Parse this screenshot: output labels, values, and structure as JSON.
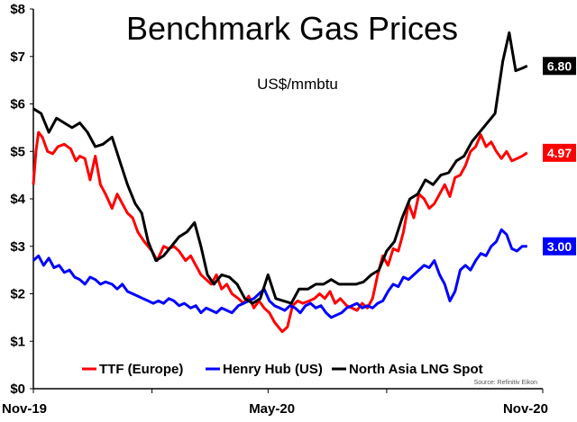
{
  "chart_data": {
    "type": "line",
    "title": "Benchmark Gas Prices",
    "subtitle": "US$/mmbtu",
    "source": "Source: Refinitiv Eikon",
    "ylim": [
      0,
      8
    ],
    "y_ticks": [
      "$0",
      "$1",
      "$2",
      "$3",
      "$4",
      "$5",
      "$6",
      "$7",
      "$8"
    ],
    "x_ticks": [
      "Nov-19",
      "May-20",
      "Nov-20"
    ],
    "x_range": [
      "2019-11-01",
      "2020-11-30"
    ],
    "grid": false,
    "legend_position": "bottom",
    "series": [
      {
        "name": "TTF (Europe)",
        "color": "#ff0000",
        "end_label": "4.97",
        "points": [
          [
            "2019-11-01",
            4.3
          ],
          [
            "2019-11-03",
            5.0
          ],
          [
            "2019-11-05",
            5.4
          ],
          [
            "2019-11-08",
            5.3
          ],
          [
            "2019-11-12",
            5.0
          ],
          [
            "2019-11-16",
            4.95
          ],
          [
            "2019-11-20",
            5.1
          ],
          [
            "2019-11-25",
            5.15
          ],
          [
            "2019-11-30",
            5.05
          ],
          [
            "2019-12-04",
            4.8
          ],
          [
            "2019-12-07",
            4.9
          ],
          [
            "2019-12-11",
            4.85
          ],
          [
            "2019-12-15",
            4.4
          ],
          [
            "2019-12-19",
            4.9
          ],
          [
            "2019-12-23",
            4.3
          ],
          [
            "2019-12-27",
            4.1
          ],
          [
            "2020-01-01",
            3.8
          ],
          [
            "2020-01-05",
            4.1
          ],
          [
            "2020-01-09",
            3.9
          ],
          [
            "2020-01-13",
            3.7
          ],
          [
            "2020-01-17",
            3.6
          ],
          [
            "2020-01-21",
            3.3
          ],
          [
            "2020-01-26",
            3.1
          ],
          [
            "2020-02-01",
            2.9
          ],
          [
            "2020-02-05",
            2.7
          ],
          [
            "2020-02-10",
            3.0
          ],
          [
            "2020-02-14",
            2.95
          ],
          [
            "2020-02-18",
            3.0
          ],
          [
            "2020-02-22",
            2.9
          ],
          [
            "2020-02-27",
            2.7
          ],
          [
            "2020-03-02",
            2.8
          ],
          [
            "2020-03-06",
            2.6
          ],
          [
            "2020-03-10",
            2.4
          ],
          [
            "2020-03-14",
            2.3
          ],
          [
            "2020-03-18",
            2.2
          ],
          [
            "2020-03-22",
            2.4
          ],
          [
            "2020-03-26",
            2.1
          ],
          [
            "2020-03-30",
            2.2
          ],
          [
            "2020-04-03",
            2.0
          ],
          [
            "2020-04-08",
            1.9
          ],
          [
            "2020-04-12",
            1.8
          ],
          [
            "2020-04-16",
            1.95
          ],
          [
            "2020-04-20",
            1.7
          ],
          [
            "2020-04-24",
            1.85
          ],
          [
            "2020-04-28",
            1.7
          ],
          [
            "2020-05-02",
            1.6
          ],
          [
            "2020-05-06",
            1.4
          ],
          [
            "2020-05-09",
            1.3
          ],
          [
            "2020-05-12",
            1.2
          ],
          [
            "2020-05-16",
            1.3
          ],
          [
            "2020-05-20",
            1.75
          ],
          [
            "2020-05-24",
            1.85
          ],
          [
            "2020-05-28",
            1.8
          ],
          [
            "2020-06-02",
            1.85
          ],
          [
            "2020-06-06",
            1.9
          ],
          [
            "2020-06-10",
            2.0
          ],
          [
            "2020-06-14",
            1.9
          ],
          [
            "2020-06-18",
            2.05
          ],
          [
            "2020-06-22",
            1.8
          ],
          [
            "2020-06-26",
            1.9
          ],
          [
            "2020-07-01",
            1.75
          ],
          [
            "2020-07-05",
            1.7
          ],
          [
            "2020-07-09",
            1.65
          ],
          [
            "2020-07-13",
            1.8
          ],
          [
            "2020-07-17",
            1.7
          ],
          [
            "2020-07-21",
            1.9
          ],
          [
            "2020-07-25",
            2.4
          ],
          [
            "2020-07-29",
            2.8
          ],
          [
            "2020-08-02",
            2.6
          ],
          [
            "2020-08-06",
            2.95
          ],
          [
            "2020-08-10",
            2.9
          ],
          [
            "2020-08-14",
            3.3
          ],
          [
            "2020-08-18",
            3.9
          ],
          [
            "2020-08-22",
            3.6
          ],
          [
            "2020-08-26",
            4.1
          ],
          [
            "2020-08-30",
            4.0
          ],
          [
            "2020-09-03",
            3.8
          ],
          [
            "2020-09-07",
            3.9
          ],
          [
            "2020-09-11",
            4.1
          ],
          [
            "2020-09-15",
            4.3
          ],
          [
            "2020-09-19",
            4.05
          ],
          [
            "2020-09-23",
            4.45
          ],
          [
            "2020-09-27",
            4.5
          ],
          [
            "2020-10-01",
            4.7
          ],
          [
            "2020-10-05",
            5.0
          ],
          [
            "2020-10-09",
            5.1
          ],
          [
            "2020-10-13",
            5.35
          ],
          [
            "2020-10-17",
            5.1
          ],
          [
            "2020-10-21",
            5.2
          ],
          [
            "2020-10-25",
            5.0
          ],
          [
            "2020-10-29",
            4.85
          ],
          [
            "2020-11-02",
            5.0
          ],
          [
            "2020-11-06",
            4.8
          ],
          [
            "2020-11-10",
            4.85
          ],
          [
            "2020-11-14",
            4.9
          ],
          [
            "2020-11-18",
            4.97
          ]
        ]
      },
      {
        "name": "Henry Hub (US)",
        "color": "#0000ff",
        "end_label": "3.00",
        "points": [
          [
            "2019-11-01",
            2.7
          ],
          [
            "2019-11-05",
            2.8
          ],
          [
            "2019-11-09",
            2.6
          ],
          [
            "2019-11-13",
            2.75
          ],
          [
            "2019-11-17",
            2.55
          ],
          [
            "2019-11-21",
            2.6
          ],
          [
            "2019-11-25",
            2.45
          ],
          [
            "2019-11-29",
            2.5
          ],
          [
            "2019-12-03",
            2.35
          ],
          [
            "2019-12-07",
            2.3
          ],
          [
            "2019-12-11",
            2.2
          ],
          [
            "2019-12-15",
            2.35
          ],
          [
            "2019-12-19",
            2.3
          ],
          [
            "2019-12-23",
            2.2
          ],
          [
            "2019-12-27",
            2.25
          ],
          [
            "2020-01-01",
            2.2
          ],
          [
            "2020-01-05",
            2.1
          ],
          [
            "2020-01-09",
            2.2
          ],
          [
            "2020-01-13",
            2.05
          ],
          [
            "2020-01-17",
            2.0
          ],
          [
            "2020-01-21",
            1.95
          ],
          [
            "2020-01-25",
            1.9
          ],
          [
            "2020-01-29",
            1.85
          ],
          [
            "2020-02-02",
            1.8
          ],
          [
            "2020-02-06",
            1.85
          ],
          [
            "2020-02-10",
            1.8
          ],
          [
            "2020-02-14",
            1.9
          ],
          [
            "2020-02-18",
            1.85
          ],
          [
            "2020-02-22",
            1.75
          ],
          [
            "2020-02-26",
            1.8
          ],
          [
            "2020-03-02",
            1.7
          ],
          [
            "2020-03-06",
            1.75
          ],
          [
            "2020-03-10",
            1.6
          ],
          [
            "2020-03-14",
            1.7
          ],
          [
            "2020-03-18",
            1.65
          ],
          [
            "2020-03-22",
            1.6
          ],
          [
            "2020-03-26",
            1.7
          ],
          [
            "2020-03-30",
            1.65
          ],
          [
            "2020-04-03",
            1.6
          ],
          [
            "2020-04-08",
            1.75
          ],
          [
            "2020-04-12",
            1.8
          ],
          [
            "2020-04-16",
            1.85
          ],
          [
            "2020-04-20",
            1.9
          ],
          [
            "2020-04-24",
            2.0
          ],
          [
            "2020-04-28",
            2.1
          ],
          [
            "2020-05-02",
            1.85
          ],
          [
            "2020-05-06",
            1.75
          ],
          [
            "2020-05-10",
            1.7
          ],
          [
            "2020-05-14",
            1.65
          ],
          [
            "2020-05-18",
            1.75
          ],
          [
            "2020-05-22",
            1.7
          ],
          [
            "2020-05-26",
            1.6
          ],
          [
            "2020-05-30",
            1.75
          ],
          [
            "2020-06-03",
            1.8
          ],
          [
            "2020-06-07",
            1.7
          ],
          [
            "2020-06-11",
            1.75
          ],
          [
            "2020-06-15",
            1.6
          ],
          [
            "2020-06-19",
            1.5
          ],
          [
            "2020-06-23",
            1.55
          ],
          [
            "2020-06-27",
            1.6
          ],
          [
            "2020-07-01",
            1.7
          ],
          [
            "2020-07-05",
            1.75
          ],
          [
            "2020-07-09",
            1.8
          ],
          [
            "2020-07-13",
            1.7
          ],
          [
            "2020-07-17",
            1.75
          ],
          [
            "2020-07-21",
            1.7
          ],
          [
            "2020-07-25",
            1.8
          ],
          [
            "2020-07-29",
            1.85
          ],
          [
            "2020-08-02",
            2.05
          ],
          [
            "2020-08-06",
            2.2
          ],
          [
            "2020-08-10",
            2.15
          ],
          [
            "2020-08-14",
            2.35
          ],
          [
            "2020-08-18",
            2.3
          ],
          [
            "2020-08-22",
            2.4
          ],
          [
            "2020-08-26",
            2.5
          ],
          [
            "2020-08-30",
            2.6
          ],
          [
            "2020-09-03",
            2.55
          ],
          [
            "2020-09-07",
            2.7
          ],
          [
            "2020-09-11",
            2.4
          ],
          [
            "2020-09-15",
            2.2
          ],
          [
            "2020-09-19",
            1.85
          ],
          [
            "2020-09-23",
            2.05
          ],
          [
            "2020-09-27",
            2.5
          ],
          [
            "2020-10-01",
            2.6
          ],
          [
            "2020-10-05",
            2.5
          ],
          [
            "2020-10-09",
            2.7
          ],
          [
            "2020-10-13",
            2.85
          ],
          [
            "2020-10-17",
            2.8
          ],
          [
            "2020-10-21",
            3.0
          ],
          [
            "2020-10-25",
            3.1
          ],
          [
            "2020-10-29",
            3.35
          ],
          [
            "2020-11-02",
            3.25
          ],
          [
            "2020-11-06",
            2.95
          ],
          [
            "2020-11-10",
            2.9
          ],
          [
            "2020-11-14",
            3.0
          ],
          [
            "2020-11-18",
            3.0
          ]
        ]
      },
      {
        "name": "North Asia LNG Spot",
        "color": "#000000",
        "end_label": "6.80",
        "points": [
          [
            "2019-11-01",
            5.9
          ],
          [
            "2019-11-07",
            5.8
          ],
          [
            "2019-11-13",
            5.4
          ],
          [
            "2019-11-19",
            5.7
          ],
          [
            "2019-11-25",
            5.6
          ],
          [
            "2019-12-01",
            5.5
          ],
          [
            "2019-12-07",
            5.6
          ],
          [
            "2019-12-13",
            5.4
          ],
          [
            "2019-12-19",
            5.1
          ],
          [
            "2019-12-25",
            5.15
          ],
          [
            "2020-01-01",
            5.3
          ],
          [
            "2020-01-07",
            4.8
          ],
          [
            "2020-01-13",
            4.3
          ],
          [
            "2020-01-19",
            3.9
          ],
          [
            "2020-01-24",
            3.7
          ],
          [
            "2020-01-29",
            3.1
          ],
          [
            "2020-02-04",
            2.7
          ],
          [
            "2020-02-10",
            2.8
          ],
          [
            "2020-02-16",
            3.0
          ],
          [
            "2020-02-22",
            3.2
          ],
          [
            "2020-02-28",
            3.3
          ],
          [
            "2020-03-05",
            3.5
          ],
          [
            "2020-03-10",
            3.0
          ],
          [
            "2020-03-15",
            2.4
          ],
          [
            "2020-03-20",
            2.2
          ],
          [
            "2020-03-26",
            2.4
          ],
          [
            "2020-04-01",
            2.35
          ],
          [
            "2020-04-07",
            2.2
          ],
          [
            "2020-04-13",
            1.9
          ],
          [
            "2020-04-19",
            1.8
          ],
          [
            "2020-04-25",
            1.9
          ],
          [
            "2020-05-01",
            2.4
          ],
          [
            "2020-05-07",
            1.9
          ],
          [
            "2020-05-13",
            1.85
          ],
          [
            "2020-05-19",
            1.8
          ],
          [
            "2020-05-25",
            2.1
          ],
          [
            "2020-06-01",
            2.1
          ],
          [
            "2020-06-07",
            2.2
          ],
          [
            "2020-06-13",
            2.2
          ],
          [
            "2020-06-19",
            2.3
          ],
          [
            "2020-06-25",
            2.2
          ],
          [
            "2020-07-01",
            2.2
          ],
          [
            "2020-07-08",
            2.2
          ],
          [
            "2020-07-14",
            2.25
          ],
          [
            "2020-07-20",
            2.4
          ],
          [
            "2020-07-26",
            2.5
          ],
          [
            "2020-08-01",
            2.9
          ],
          [
            "2020-08-07",
            3.1
          ],
          [
            "2020-08-13",
            3.6
          ],
          [
            "2020-08-19",
            4.0
          ],
          [
            "2020-08-25",
            4.1
          ],
          [
            "2020-08-31",
            4.4
          ],
          [
            "2020-09-06",
            4.3
          ],
          [
            "2020-09-12",
            4.5
          ],
          [
            "2020-09-18",
            4.55
          ],
          [
            "2020-09-24",
            4.8
          ],
          [
            "2020-09-30",
            4.9
          ],
          [
            "2020-10-06",
            5.2
          ],
          [
            "2020-10-12",
            5.4
          ],
          [
            "2020-10-18",
            5.6
          ],
          [
            "2020-10-24",
            5.8
          ],
          [
            "2020-10-30",
            6.9
          ],
          [
            "2020-11-04",
            7.5
          ],
          [
            "2020-11-09",
            6.7
          ],
          [
            "2020-11-14",
            6.75
          ],
          [
            "2020-11-18",
            6.8
          ]
        ]
      }
    ]
  }
}
